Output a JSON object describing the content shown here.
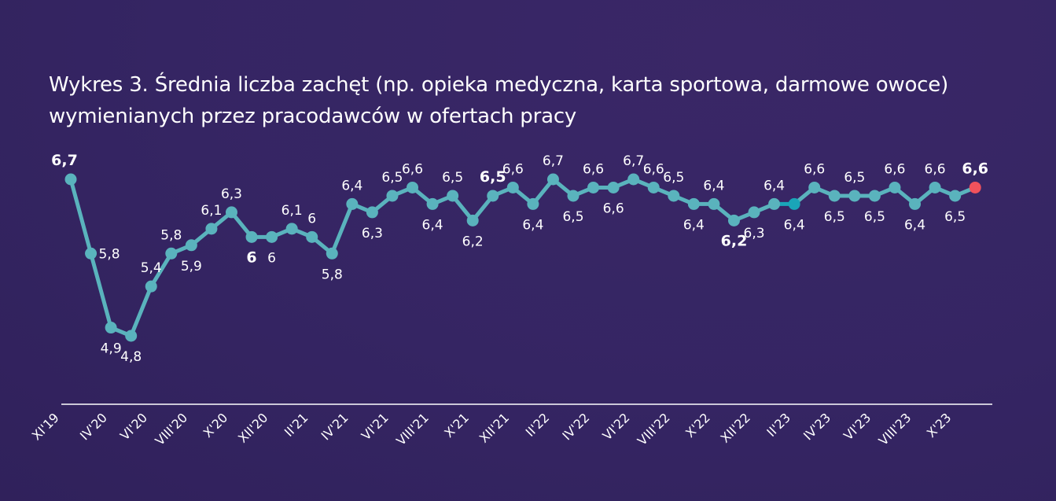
{
  "title": "Wykres 3. Średnia liczba zachęt (np. opieka medyczna, karta sportowa, darmowe owoce) wymienianych przez pracodawców w ofertach pracy",
  "colors": {
    "background": "#352563",
    "line": "#5ab3bd",
    "recent_segment": "#1aa5b8",
    "last_point": "#f0525c",
    "axis": "#ffffff"
  },
  "chart_data": {
    "type": "line",
    "title": "Wykres 3. Średnia liczba zachęt (np. opieka medyczna, karta sportowa, darmowe owoce) wymienianych przez pracodawców w ofertach pracy",
    "xlabel": "",
    "ylabel": "",
    "ylim": [
      4.8,
      6.7
    ],
    "grid": false,
    "x_tick_labels": [
      "XI'19",
      "IV'20",
      "VI'20",
      "VIII'20",
      "X'20",
      "XII'20",
      "II'21",
      "IV'21",
      "VI'21",
      "VIII'21",
      "X'21",
      "XII'21",
      "II'22",
      "IV'22",
      "VI'22",
      "VIII'22",
      "X'22",
      "XII'22",
      "II'23",
      "IV'23",
      "VI'23",
      "VIII'23",
      "X'23"
    ],
    "series": [
      {
        "values": [
          6.7,
          5.8,
          4.9,
          4.8,
          5.4,
          5.8,
          5.9,
          6.1,
          6.3,
          6.0,
          6.0,
          6.1,
          6.0,
          5.8,
          6.4,
          6.3,
          6.5,
          6.6,
          6.4,
          6.5,
          6.2,
          6.5,
          6.6,
          6.4,
          6.7,
          6.5,
          6.6,
          6.6,
          6.7,
          6.6,
          6.5,
          6.4,
          6.4,
          6.2,
          6.3,
          6.4,
          6.4,
          6.6,
          6.5,
          6.5,
          6.5,
          6.6,
          6.4,
          6.6,
          6.5,
          6.6
        ],
        "labels": [
          "6,7",
          "5,8",
          "4,9",
          "4,8",
          "5,4",
          "5,8",
          "5,9",
          "6,1",
          "6,3",
          "6",
          "6",
          "6,1",
          "6",
          "5,8",
          "6,4",
          "6,3",
          "6,5",
          "6,6",
          "6,4",
          "6,5",
          "6,2",
          "6,5",
          "6,6",
          "6,4",
          "6,7",
          "6,5",
          "6,6",
          "6,6",
          "6,7",
          "6,6",
          "6,5",
          "6,4",
          "6,4",
          "6,2",
          "6,3",
          "6,4",
          "6,4",
          "6,6",
          "6,5",
          "6,5",
          "6,5",
          "6,6",
          "6,4",
          "6,6",
          "6,5",
          "6,6"
        ]
      }
    ]
  }
}
